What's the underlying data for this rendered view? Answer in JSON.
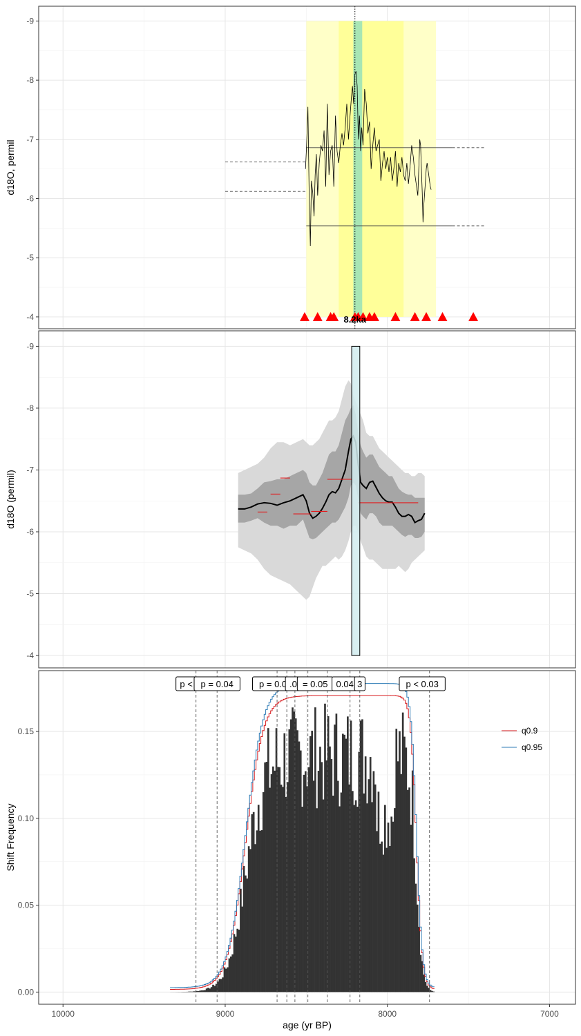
{
  "chart_data": [
    {
      "type": "line",
      "panel": "top",
      "ylabel": "d18O, permil",
      "xlabel": "",
      "xlim": [
        10150,
        6840
      ],
      "ylim": [
        -3.8,
        -9.25
      ],
      "y_reversed": true,
      "yticks": [
        -9,
        -8,
        -7,
        -6,
        -5,
        -4
      ],
      "xgrid": [
        10000,
        9000,
        8000,
        7000
      ],
      "grid": true,
      "event_label": "8.2ka",
      "event_age": 8200,
      "bands": [
        {
          "x0": 8500,
          "x1": 7700,
          "color": "#ffffc8"
        },
        {
          "x0": 8300,
          "x1": 7900,
          "color": "#ffff99"
        },
        {
          "x0": 8210,
          "x1": 8155,
          "color": "#a8e6b4"
        }
      ],
      "series": [
        {
          "x": [
            8505,
            8498,
            8490,
            8482,
            8475,
            8468,
            8460,
            8452,
            8445,
            8438,
            8430,
            8420,
            8410,
            8400,
            8390,
            8380,
            8370,
            8360,
            8350,
            8340,
            8330,
            8320,
            8310,
            8300,
            8290,
            8280,
            8270,
            8260,
            8250,
            8240,
            8230,
            8222,
            8215,
            8208,
            8200,
            8193,
            8186,
            8179,
            8172,
            8165,
            8158,
            8150,
            8140,
            8130,
            8120,
            8110,
            8100,
            8090,
            8080,
            8070,
            8060,
            8050,
            8040,
            8030,
            8020,
            8010,
            8000,
            7990,
            7980,
            7970,
            7960,
            7950,
            7940,
            7930,
            7920,
            7910,
            7900,
            7890,
            7880,
            7870,
            7860,
            7850,
            7840,
            7830,
            7820,
            7812,
            7805,
            7800,
            7795,
            7790,
            7785,
            7780,
            7775,
            7770,
            7765,
            7760,
            7755,
            7750,
            7745,
            7740,
            7735,
            7730
          ],
          "values": [
            -6.5,
            -6.9,
            -7.55,
            -6.0,
            -5.2,
            -6.3,
            -6.1,
            -5.7,
            -6.4,
            -6.75,
            -6.05,
            -6.6,
            -6.9,
            -6.8,
            -7.15,
            -6.2,
            -7.6,
            -6.4,
            -6.8,
            -6.9,
            -6.2,
            -7.4,
            -6.8,
            -6.6,
            -6.9,
            -7.1,
            -6.9,
            -7.2,
            -7.6,
            -7.0,
            -7.4,
            -7.7,
            -7.9,
            -7.6,
            -8.1,
            -8.15,
            -7.9,
            -7.0,
            -7.4,
            -6.8,
            -7.2,
            -6.9,
            -7.85,
            -7.6,
            -7.1,
            -7.3,
            -6.5,
            -6.9,
            -7.2,
            -6.8,
            -6.9,
            -7.0,
            -6.3,
            -6.6,
            -6.8,
            -6.5,
            -6.7,
            -6.45,
            -6.7,
            -6.3,
            -6.5,
            -6.8,
            -6.2,
            -6.6,
            -6.45,
            -6.7,
            -6.4,
            -6.3,
            -6.6,
            -6.25,
            -6.55,
            -6.9,
            -6.7,
            -6.4,
            -6.2,
            -6.05,
            -6.6,
            -7.0,
            -6.9,
            -6.5,
            -6.1,
            -5.6,
            -5.9,
            -6.1,
            -6.3,
            -6.5,
            -6.6,
            -6.5,
            -6.4,
            -6.3,
            -6.2,
            -6.15
          ],
          "color": "#000000"
        }
      ],
      "reference_lines": [
        {
          "x0": 9000,
          "x1": 8500,
          "y": -6.62,
          "style": "dashed"
        },
        {
          "x0": 9000,
          "x1": 8500,
          "y": -6.12,
          "style": "dashed"
        },
        {
          "x0": 8500,
          "x1": 7600,
          "y": -6.86,
          "style": "solid"
        },
        {
          "x0": 7600,
          "x1": 7400,
          "y": -6.86,
          "style": "dashed"
        },
        {
          "x0": 8500,
          "x1": 7600,
          "y": -5.54,
          "style": "solid"
        },
        {
          "x0": 7600,
          "x1": 7400,
          "y": -5.54,
          "style": "dashed"
        }
      ],
      "markers": [
        8510,
        8430,
        8350,
        8330,
        8200,
        8180,
        8150,
        8110,
        8080,
        7950,
        7830,
        7760,
        7660,
        7470
      ],
      "marker_y": -4,
      "marker_color": "#ff0000"
    },
    {
      "type": "area",
      "panel": "middle",
      "ylabel": "d18O (permil)",
      "xlabel": "",
      "xlim": [
        10150,
        6840
      ],
      "ylim": [
        -3.8,
        -9.25
      ],
      "y_reversed": true,
      "yticks": [
        -9,
        -8,
        -7,
        -6,
        -5,
        -4
      ],
      "xgrid": [
        10000,
        9000,
        8000,
        7000
      ],
      "grid": true,
      "x": [
        8920,
        8880,
        8840,
        8800,
        8760,
        8720,
        8680,
        8640,
        8600,
        8560,
        8520,
        8500,
        8480,
        8460,
        8440,
        8420,
        8400,
        8380,
        8360,
        8340,
        8320,
        8300,
        8280,
        8260,
        8240,
        8225,
        8210,
        8195,
        8180,
        8165,
        8150,
        8130,
        8110,
        8090,
        8070,
        8050,
        8030,
        8010,
        7990,
        7970,
        7950,
        7930,
        7910,
        7890,
        7870,
        7850,
        7830,
        7810,
        7790,
        7770
      ],
      "mean": [
        -6.37,
        -6.37,
        -6.4,
        -6.45,
        -6.47,
        -6.46,
        -6.43,
        -6.47,
        -6.5,
        -6.55,
        -6.6,
        -6.5,
        -6.3,
        -6.22,
        -6.25,
        -6.3,
        -6.38,
        -6.48,
        -6.6,
        -6.65,
        -6.63,
        -6.7,
        -6.85,
        -7.0,
        -7.3,
        -7.5,
        -7.55,
        -7.45,
        -7.1,
        -6.8,
        -6.75,
        -6.7,
        -6.8,
        -6.82,
        -6.72,
        -6.62,
        -6.55,
        -6.5,
        -6.48,
        -6.48,
        -6.4,
        -6.3,
        -6.25,
        -6.25,
        -6.28,
        -6.25,
        -6.15,
        -6.18,
        -6.2,
        -6.3
      ],
      "inner_band": [
        [
          -6.6,
          -6.15
        ],
        [
          -6.6,
          -6.15
        ],
        [
          -6.62,
          -6.18
        ],
        [
          -6.7,
          -6.22
        ],
        [
          -6.8,
          -6.15
        ],
        [
          -6.82,
          -6.1
        ],
        [
          -6.85,
          -6.1
        ],
        [
          -6.85,
          -6.05
        ],
        [
          -6.9,
          -6.1
        ],
        [
          -6.95,
          -6.1
        ],
        [
          -7.0,
          -6.2
        ],
        [
          -6.95,
          -6.05
        ],
        [
          -6.8,
          -5.9
        ],
        [
          -6.75,
          -5.88
        ],
        [
          -6.75,
          -5.9
        ],
        [
          -6.85,
          -5.95
        ],
        [
          -6.95,
          -6.0
        ],
        [
          -7.1,
          -6.05
        ],
        [
          -7.25,
          -6.1
        ],
        [
          -7.3,
          -6.15
        ],
        [
          -7.3,
          -6.15
        ],
        [
          -7.4,
          -6.2
        ],
        [
          -7.6,
          -6.3
        ],
        [
          -7.8,
          -6.4
        ],
        [
          -7.9,
          -6.55
        ],
        [
          -8.0,
          -6.75
        ],
        [
          -8.05,
          -6.8
        ],
        [
          -7.9,
          -6.75
        ],
        [
          -7.6,
          -6.55
        ],
        [
          -7.4,
          -6.3
        ],
        [
          -7.3,
          -6.25
        ],
        [
          -7.2,
          -6.2
        ],
        [
          -7.25,
          -6.3
        ],
        [
          -7.25,
          -6.3
        ],
        [
          -7.15,
          -6.25
        ],
        [
          -7.05,
          -6.15
        ],
        [
          -7.0,
          -6.1
        ],
        [
          -6.95,
          -6.1
        ],
        [
          -6.9,
          -6.1
        ],
        [
          -6.9,
          -6.1
        ],
        [
          -6.8,
          -6.05
        ],
        [
          -6.7,
          -6.0
        ],
        [
          -6.65,
          -5.95
        ],
        [
          -6.62,
          -5.92
        ],
        [
          -6.6,
          -5.95
        ],
        [
          -6.6,
          -5.95
        ],
        [
          -6.55,
          -5.9
        ],
        [
          -6.55,
          -5.9
        ],
        [
          -6.55,
          -5.92
        ],
        [
          -6.55,
          -6.0
        ]
      ],
      "outer_band": [
        [
          -6.95,
          -5.75
        ],
        [
          -7.0,
          -5.7
        ],
        [
          -7.05,
          -5.65
        ],
        [
          -7.1,
          -5.55
        ],
        [
          -7.2,
          -5.4
        ],
        [
          -7.35,
          -5.3
        ],
        [
          -7.45,
          -5.25
        ],
        [
          -7.45,
          -5.2
        ],
        [
          -7.4,
          -5.15
        ],
        [
          -7.45,
          -5.05
        ],
        [
          -7.5,
          -4.95
        ],
        [
          -7.45,
          -4.9
        ],
        [
          -7.4,
          -4.95
        ],
        [
          -7.4,
          -5.1
        ],
        [
          -7.45,
          -5.25
        ],
        [
          -7.5,
          -5.35
        ],
        [
          -7.6,
          -5.45
        ],
        [
          -7.7,
          -5.45
        ],
        [
          -7.8,
          -5.5
        ],
        [
          -7.8,
          -5.55
        ],
        [
          -7.85,
          -5.6
        ],
        [
          -7.95,
          -5.55
        ],
        [
          -8.15,
          -5.6
        ],
        [
          -8.35,
          -5.7
        ],
        [
          -8.45,
          -5.85
        ],
        [
          -8.4,
          -6.0
        ],
        [
          -8.2,
          -6.1
        ],
        [
          -8.1,
          -6.1
        ],
        [
          -8.0,
          -6.0
        ],
        [
          -7.9,
          -5.85
        ],
        [
          -7.8,
          -5.75
        ],
        [
          -7.6,
          -5.6
        ],
        [
          -7.55,
          -5.55
        ],
        [
          -7.55,
          -5.55
        ],
        [
          -7.45,
          -5.5
        ],
        [
          -7.35,
          -5.45
        ],
        [
          -7.3,
          -5.4
        ],
        [
          -7.25,
          -5.4
        ],
        [
          -7.2,
          -5.4
        ],
        [
          -7.15,
          -5.4
        ],
        [
          -7.1,
          -5.4
        ],
        [
          -7.05,
          -5.45
        ],
        [
          -7.0,
          -5.4
        ],
        [
          -6.95,
          -5.35
        ],
        [
          -6.95,
          -5.4
        ],
        [
          -6.9,
          -5.5
        ],
        [
          -6.9,
          -5.55
        ],
        [
          -6.95,
          -5.6
        ],
        [
          -6.95,
          -5.65
        ],
        [
          -6.9,
          -5.7
        ]
      ],
      "shift_segments": [
        {
          "x0": 8800,
          "x1": 8740,
          "y": -6.32
        },
        {
          "x0": 8720,
          "x1": 8660,
          "y": -6.61
        },
        {
          "x0": 8660,
          "x1": 8600,
          "y": -6.87
        },
        {
          "x0": 8580,
          "x1": 8470,
          "y": -6.29
        },
        {
          "x0": 8470,
          "x1": 8370,
          "y": -6.33
        },
        {
          "x0": 8370,
          "x1": 8220,
          "y": -6.85
        },
        {
          "x0": 8180,
          "x1": 7810,
          "y": -6.47
        }
      ],
      "event_box": {
        "x0": 8220,
        "x1": 8170,
        "y0": -4.0,
        "y1": -9.0
      }
    },
    {
      "type": "bar",
      "panel": "bottom",
      "ylabel": "Shift Frequency",
      "xlabel": "age (yr BP)",
      "xlim": [
        10150,
        6840
      ],
      "ylim": [
        -0.007,
        0.185
      ],
      "yticks": [
        0.0,
        0.05,
        0.1,
        0.15
      ],
      "ytick_labels": [
        "0.00",
        "0.05",
        "0.10",
        "0.15"
      ],
      "xticks": [
        10000,
        9000,
        8000,
        7000
      ],
      "grid": true,
      "bin_width": 10,
      "bins_start": 9340,
      "bins_end": 7710,
      "bar_color": "#333333",
      "vlines": [
        9180,
        9050,
        8680,
        8620,
        8570,
        8490,
        8370,
        8230,
        8170,
        7740
      ],
      "labels": [
        {
          "text": "p <",
          "x": 9240
        },
        {
          "text": "p = 0.04",
          "x": 9050
        },
        {
          "text": "p = 0.09",
          "x": 8690
        },
        {
          "text": ".07",
          "x": 8565
        },
        {
          "text": "= 0.05",
          "x": 8445
        },
        {
          "text": "0.04",
          "x": 8262
        },
        {
          "text": "3",
          "x": 8170
        },
        {
          "text": "p < 0.03",
          "x": 7785
        }
      ],
      "legend": [
        {
          "name": "q0.9",
          "color": "#d7191c"
        },
        {
          "name": "q0.95",
          "color": "#2c7bb6"
        }
      ],
      "legend_position": "right"
    }
  ]
}
